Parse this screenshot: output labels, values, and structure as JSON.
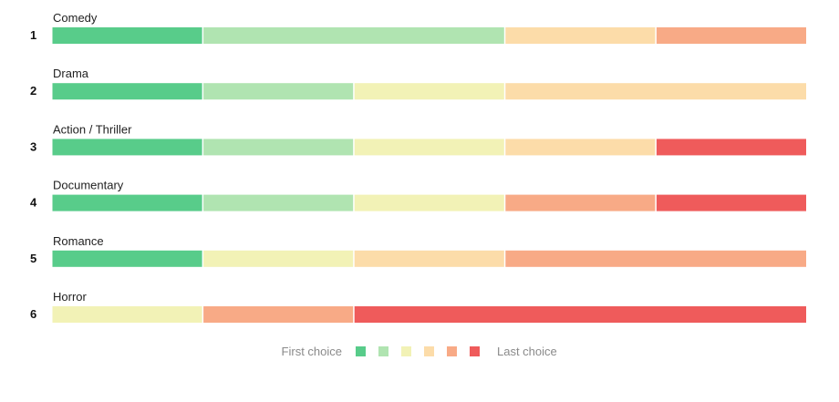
{
  "chart_data": {
    "type": "bar",
    "subtype": "stacked-ranking",
    "categories": [
      "Comedy",
      "Drama",
      "Action / Thriller",
      "Documentary",
      "Romance",
      "Horror"
    ],
    "ranks": [
      "1",
      "2",
      "3",
      "4",
      "5",
      "6"
    ],
    "choice_colors": [
      "#58cc8a",
      "#b0e4b1",
      "#f2f2b6",
      "#fcdca9",
      "#f8aa86",
      "#ef5b5b"
    ],
    "rows": [
      {
        "category": "Comedy",
        "segments": [
          {
            "choice": 1,
            "units": 1
          },
          {
            "choice": 2,
            "units": 2
          },
          {
            "choice": 4,
            "units": 1
          },
          {
            "choice": 5,
            "units": 1
          }
        ]
      },
      {
        "category": "Drama",
        "segments": [
          {
            "choice": 1,
            "units": 1
          },
          {
            "choice": 2,
            "units": 1
          },
          {
            "choice": 3,
            "units": 1
          },
          {
            "choice": 4,
            "units": 2
          }
        ]
      },
      {
        "category": "Action / Thriller",
        "segments": [
          {
            "choice": 1,
            "units": 1
          },
          {
            "choice": 2,
            "units": 1
          },
          {
            "choice": 3,
            "units": 1
          },
          {
            "choice": 4,
            "units": 1
          },
          {
            "choice": 6,
            "units": 1
          }
        ]
      },
      {
        "category": "Documentary",
        "segments": [
          {
            "choice": 1,
            "units": 1
          },
          {
            "choice": 2,
            "units": 1
          },
          {
            "choice": 3,
            "units": 1
          },
          {
            "choice": 5,
            "units": 1
          },
          {
            "choice": 6,
            "units": 1
          }
        ]
      },
      {
        "category": "Romance",
        "segments": [
          {
            "choice": 1,
            "units": 1
          },
          {
            "choice": 3,
            "units": 1
          },
          {
            "choice": 4,
            "units": 1
          },
          {
            "choice": 5,
            "units": 2
          }
        ]
      },
      {
        "category": "Horror",
        "segments": [
          {
            "choice": 3,
            "units": 1
          },
          {
            "choice": 5,
            "units": 1
          },
          {
            "choice": 6,
            "units": 3
          }
        ]
      }
    ],
    "legend": {
      "start_label": "First choice",
      "end_label": "Last choice",
      "placement": "bottom-center"
    },
    "grid": false
  }
}
